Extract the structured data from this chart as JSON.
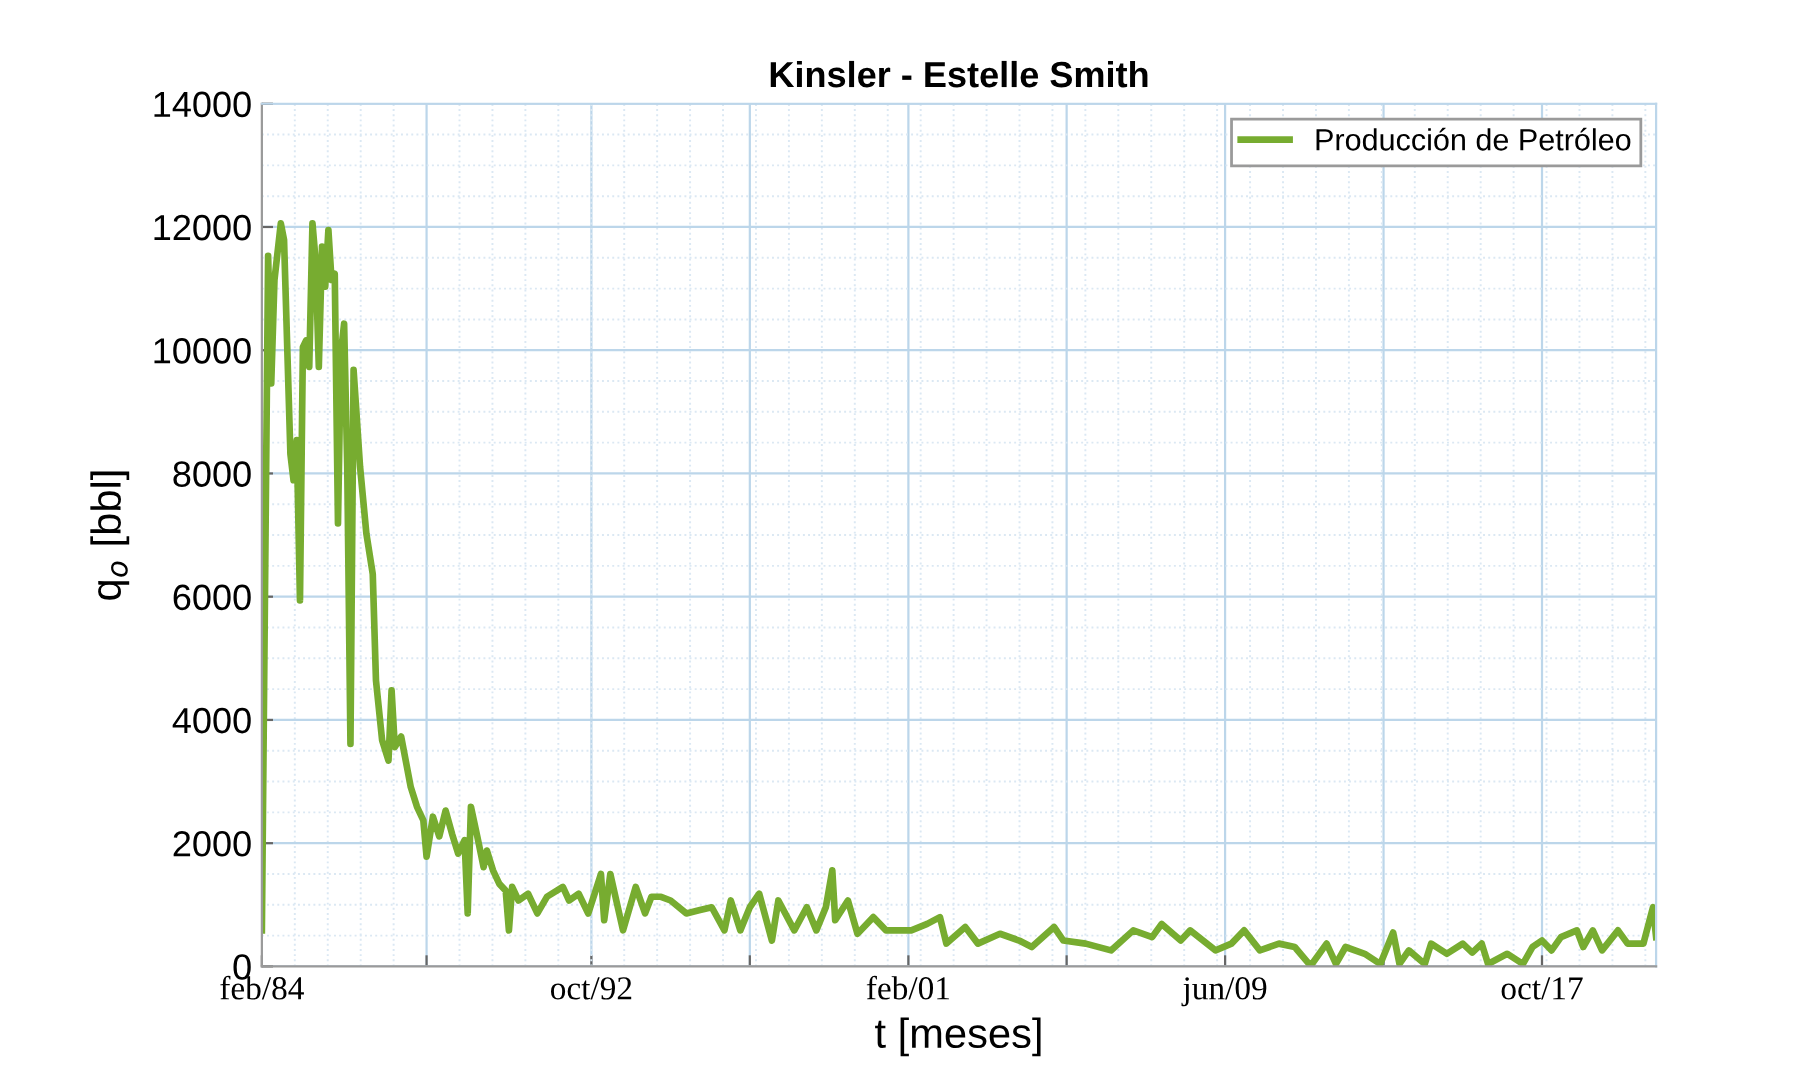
{
  "chart_data": {
    "type": "line",
    "title": "Kinsler - Estelle Smith",
    "xlabel": "t [meses]",
    "ylabel": "q$_{o}$ [bbl]",
    "x": [
      "1984-02",
      "1984-04",
      "1984-05",
      "1984-06",
      "1984-08",
      "1984-09",
      "1984-11",
      "1984-12",
      "1985-01",
      "1985-02",
      "1985-03",
      "1985-04",
      "1985-05",
      "1985-06",
      "1985-07",
      "1985-08",
      "1985-09",
      "1985-10",
      "1985-11",
      "1985-12",
      "1986-01",
      "1986-02",
      "1986-03",
      "1986-04",
      "1986-05",
      "1986-06",
      "1986-07",
      "1986-09",
      "1986-11",
      "1987-01",
      "1987-02",
      "1987-04",
      "1987-06",
      "1987-07",
      "1987-08",
      "1987-10",
      "1988-01",
      "1988-03",
      "1988-05",
      "1988-06",
      "1988-08",
      "1988-10",
      "1988-12",
      "1989-02",
      "1989-04",
      "1989-06",
      "1989-07",
      "1989-08",
      "1989-10",
      "1989-12",
      "1990-01",
      "1990-03",
      "1990-05",
      "1990-07",
      "1990-08",
      "1990-09",
      "1990-11",
      "1991-02",
      "1991-05",
      "1991-08",
      "1992-01",
      "1992-03",
      "1992-06",
      "1992-09",
      "1993-01",
      "1993-02",
      "1993-04",
      "1993-08",
      "1993-12",
      "1994-03",
      "1994-05",
      "1994-08",
      "1994-11",
      "1995-04",
      "1995-08",
      "1995-12",
      "1996-04",
      "1996-06",
      "1996-09",
      "1996-12",
      "1997-03",
      "1997-07",
      "1997-09",
      "1998-02",
      "1998-06",
      "1998-09",
      "1998-12",
      "1999-02",
      "1999-03",
      "1999-07",
      "1999-10",
      "2000-03",
      "2000-07",
      "2001-03",
      "2001-08",
      "2001-12",
      "2002-02",
      "2002-08",
      "2002-12",
      "2003-07",
      "2004-01",
      "2004-05",
      "2004-12",
      "2005-03",
      "2005-10",
      "2006-06",
      "2007-01",
      "2007-07",
      "2007-10",
      "2008-04",
      "2008-07",
      "2009-03",
      "2009-08",
      "2009-12",
      "2010-05",
      "2010-11",
      "2011-04",
      "2011-09",
      "2012-02",
      "2012-05",
      "2012-08",
      "2013-02",
      "2013-07",
      "2013-11",
      "2014-01",
      "2014-04",
      "2014-09",
      "2014-11",
      "2015-04",
      "2015-09",
      "2015-12",
      "2016-03",
      "2016-05",
      "2016-11",
      "2017-04",
      "2017-07",
      "2017-10",
      "2018-01",
      "2018-04",
      "2018-09",
      "2018-11",
      "2019-02",
      "2019-05",
      "2019-10",
      "2020-01",
      "2020-06",
      "2020-09",
      "2020-10"
    ],
    "series": [
      {
        "name": "Producción de Petróleo",
        "color": "#77ac30",
        "values": [
          585,
          11530,
          9460,
          11140,
          12060,
          11790,
          8320,
          7890,
          8540,
          5940,
          10050,
          10160,
          9730,
          12060,
          11460,
          9730,
          11680,
          11030,
          11950,
          11140,
          11240,
          7190,
          9950,
          10430,
          8110,
          3610,
          9680,
          8110,
          7020,
          6370,
          4640,
          3670,
          3340,
          4480,
          3560,
          3730,
          2910,
          2590,
          2370,
          1780,
          2430,
          2110,
          2530,
          2150,
          1830,
          2050,
          860,
          2590,
          2110,
          1610,
          1880,
          1560,
          1340,
          1230,
          585,
          1290,
          1070,
          1180,
          860,
          1130,
          1290,
          1070,
          1180,
          860,
          1500,
          750,
          1500,
          585,
          1290,
          860,
          1130,
          1130,
          1070,
          860,
          910,
          960,
          585,
          1070,
          585,
          960,
          1180,
          420,
          1070,
          585,
          960,
          585,
          960,
          1560,
          750,
          1070,
          530,
          800,
          585,
          585,
          690,
          800,
          370,
          640,
          370,
          530,
          420,
          315,
          640,
          420,
          370,
          260,
          585,
          475,
          690,
          420,
          585,
          260,
          370,
          585,
          260,
          370,
          315,
          10,
          370,
          40,
          315,
          205,
          40,
          550,
          40,
          260,
          40,
          370,
          205,
          370,
          225,
          370,
          40,
          205,
          40,
          315,
          420,
          260,
          475,
          585,
          315,
          585,
          260,
          585,
          370,
          370,
          960,
          475
        ]
      }
    ],
    "xlim": [
      "1984-02",
      "2020-10"
    ],
    "xticks": [
      {
        "value": "1984-02",
        "label": "feb/84"
      },
      {
        "value": "1988-06",
        "label": null
      },
      {
        "value": "1992-10",
        "label": "oct/92"
      },
      {
        "value": "1996-12",
        "label": null
      },
      {
        "value": "2001-02",
        "label": "feb/01"
      },
      {
        "value": "2005-04",
        "label": null
      },
      {
        "value": "2009-06",
        "label": "jun/09"
      },
      {
        "value": "2013-08",
        "label": null
      },
      {
        "value": "2017-10",
        "label": "oct/17"
      }
    ],
    "ylim": [
      0,
      14000
    ],
    "yticks": [
      0,
      2000,
      4000,
      6000,
      8000,
      10000,
      12000,
      14000
    ],
    "grid": true,
    "legend": "top right",
    "marker": "none",
    "line_style": "solid"
  }
}
